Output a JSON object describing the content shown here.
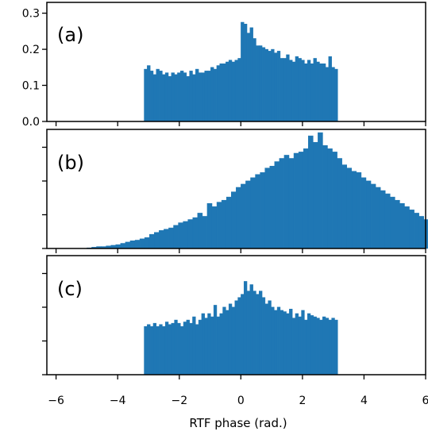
{
  "chart_data": {
    "type": "bar",
    "x_axis_label": "RTF phase (rad.)",
    "xlim": [
      -6.3,
      6.0
    ],
    "x_ticks": [
      "-6",
      "-4",
      "-2",
      "0",
      "2",
      "4",
      "6"
    ],
    "bar_color": "#1f77b4",
    "panels": [
      {
        "label": "(a)",
        "ylim": [
          0,
          0.33
        ],
        "y_ticks": [
          "0.0",
          "0.1",
          "0.2",
          "0.3"
        ],
        "bins": {
          "start": -3.14,
          "width": 0.0982,
          "values": [
            0.145,
            0.155,
            0.14,
            0.13,
            0.145,
            0.14,
            0.13,
            0.135,
            0.125,
            0.135,
            0.13,
            0.135,
            0.14,
            0.135,
            0.125,
            0.14,
            0.13,
            0.145,
            0.135,
            0.135,
            0.14,
            0.14,
            0.15,
            0.145,
            0.155,
            0.16,
            0.16,
            0.165,
            0.17,
            0.165,
            0.17,
            0.175,
            0.275,
            0.27,
            0.245,
            0.26,
            0.23,
            0.21,
            0.21,
            0.205,
            0.2,
            0.195,
            0.2,
            0.19,
            0.195,
            0.175,
            0.175,
            0.185,
            0.17,
            0.165,
            0.18,
            0.175,
            0.17,
            0.16,
            0.17,
            0.16,
            0.175,
            0.165,
            0.16,
            0.16,
            0.15,
            0.18,
            0.15,
            0.145
          ]
        }
      },
      {
        "label": "(b)",
        "ylim": [
          0,
          0.185
        ],
        "y_ticks": [
          "",
          "",
          "",
          ""
        ],
        "bins": {
          "start": -5.0,
          "width": 0.1563,
          "values": [
            0.001,
            0.002,
            0.003,
            0.003,
            0.004,
            0.005,
            0.006,
            0.008,
            0.01,
            0.012,
            0.013,
            0.015,
            0.017,
            0.022,
            0.025,
            0.028,
            0.03,
            0.032,
            0.036,
            0.04,
            0.042,
            0.045,
            0.048,
            0.055,
            0.05,
            0.07,
            0.065,
            0.072,
            0.075,
            0.08,
            0.088,
            0.095,
            0.1,
            0.105,
            0.11,
            0.115,
            0.118,
            0.125,
            0.128,
            0.135,
            0.14,
            0.145,
            0.14,
            0.148,
            0.15,
            0.155,
            0.175,
            0.165,
            0.18,
            0.16,
            0.155,
            0.15,
            0.14,
            0.13,
            0.125,
            0.12,
            0.118,
            0.11,
            0.105,
            0.1,
            0.095,
            0.09,
            0.085,
            0.08,
            0.075,
            0.07,
            0.065,
            0.06,
            0.055,
            0.05,
            0.045,
            0.04,
            0.035,
            0.03,
            0.026,
            0.022,
            0.018,
            0.015,
            0.012,
            0.01,
            0.008,
            0.006,
            0.005,
            0.004,
            0.003,
            0.002,
            0.001
          ]
        }
      },
      {
        "label": "(c)",
        "ylim": [
          0,
          0.185
        ],
        "y_ticks": [
          "",
          "",
          "",
          ""
        ],
        "bins": {
          "start": -3.14,
          "width": 0.0982,
          "values": [
            0.075,
            0.078,
            0.075,
            0.08,
            0.075,
            0.078,
            0.075,
            0.082,
            0.078,
            0.08,
            0.085,
            0.08,
            0.075,
            0.082,
            0.085,
            0.08,
            0.09,
            0.078,
            0.085,
            0.095,
            0.088,
            0.095,
            0.09,
            0.108,
            0.09,
            0.095,
            0.105,
            0.1,
            0.11,
            0.105,
            0.115,
            0.12,
            0.125,
            0.145,
            0.13,
            0.14,
            0.13,
            0.125,
            0.13,
            0.12,
            0.11,
            0.115,
            0.105,
            0.1,
            0.105,
            0.1,
            0.098,
            0.095,
            0.102,
            0.088,
            0.095,
            0.09,
            0.1,
            0.085,
            0.095,
            0.092,
            0.09,
            0.088,
            0.085,
            0.09,
            0.088,
            0.085,
            0.088,
            0.085
          ]
        }
      }
    ]
  }
}
